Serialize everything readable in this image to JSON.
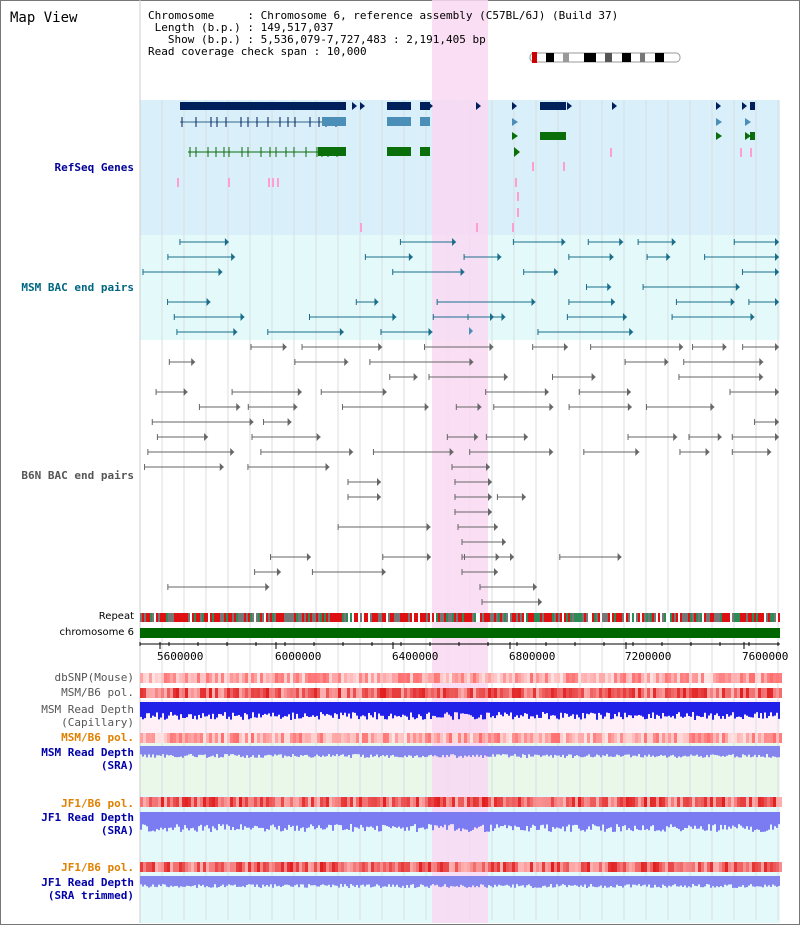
{
  "header": {
    "title": "Map View",
    "chromosome_label": "Chromosome",
    "chromosome_value": "Chromosome 6, reference assembly (C57BL/6J) (Build 37)",
    "length_label": "Length (b.p.)",
    "length_value": "149,517,037",
    "show_label": "Show (b.p.)",
    "show_value": "5,536,079-7,727,483 : 2,191,405 bp",
    "coverage_label": "Read coverage check span",
    "coverage_value": "10,000"
  },
  "tracks": {
    "refseq": "RefSeq Genes",
    "msm_bac": "MSM BAC end pairs",
    "b6n_bac": "B6N BAC end pairs",
    "repeat": "Repeat",
    "chromosome": "chromosome 6",
    "dbsnp": "dbSNP(Mouse)",
    "msm_b6_pol_1": "MSM/B6 pol.",
    "msm_depth_cap_1": "MSM Read Depth",
    "msm_depth_cap_2": "(Capillary)",
    "msm_b6_pol_2": "MSM/B6 pol.",
    "msm_depth_sra_1": "MSM Read Depth",
    "msm_depth_sra_2": "(SRA)",
    "jf1_pol_1": "JF1/B6 pol.",
    "jf1_depth_sra_1": "JF1 Read Depth",
    "jf1_depth_sra_2": "(SRA)",
    "jf1_pol_2": "JF1/B6 pol.",
    "jf1_depth_trim_1": "JF1 Read Depth",
    "jf1_depth_trim_2": "(SRA trimmed)"
  },
  "axis": {
    "ticks": [
      "5600000",
      "6000000",
      "6400000",
      "6800000",
      "7200000",
      "7600000"
    ]
  },
  "colors": {
    "refseq_bg": "#d9effa",
    "msm_bg": "#e4fafa",
    "highlight": "#f9d8f2",
    "refseq_label": "#000099",
    "msm_label": "#006680",
    "b6n_label": "#555555",
    "pol_label": "#e08000",
    "depth_label": "#0000aa",
    "chromosome_bar": "#006600"
  }
}
